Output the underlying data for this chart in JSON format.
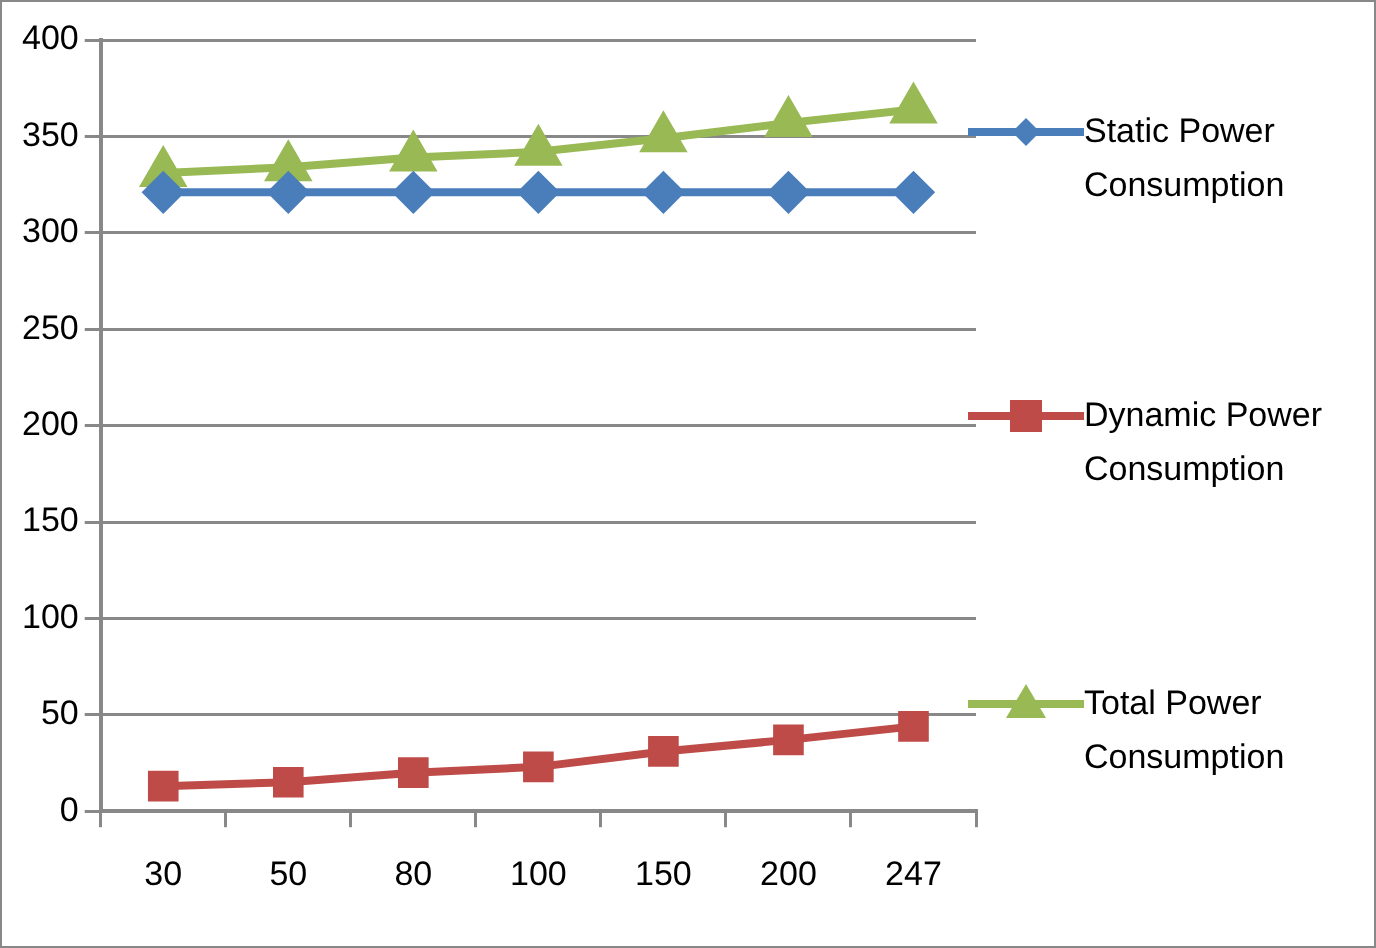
{
  "chart_data": {
    "type": "line",
    "categories": [
      "30",
      "50",
      "80",
      "100",
      "150",
      "200",
      "247"
    ],
    "series": [
      {
        "name": "Static Power Consumption",
        "color": "#4a7ebb",
        "marker": "diamond",
        "values": [
          321,
          321,
          321,
          321,
          321,
          321,
          321
        ]
      },
      {
        "name": "Dynamic Power Consumption",
        "color": "#be4b48",
        "marker": "square",
        "values": [
          13,
          15,
          20,
          23,
          31,
          37,
          44
        ]
      },
      {
        "name": "Total Power Consumption",
        "color": "#98b954",
        "marker": "triangle",
        "values": [
          331,
          334,
          339,
          342,
          349,
          357,
          364
        ]
      }
    ],
    "ylim": [
      0,
      400
    ],
    "yticks": [
      0,
      50,
      100,
      150,
      200,
      250,
      300,
      350,
      400
    ],
    "grid": "y",
    "legend": "right"
  }
}
